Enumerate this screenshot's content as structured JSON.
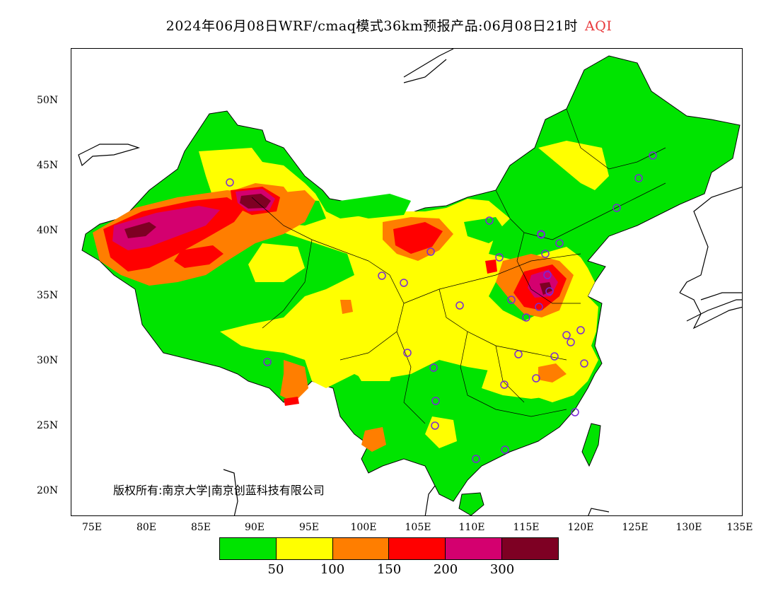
{
  "title": {
    "main": "2024年06月08日WRF/cmaq模式36km预报产品:06月08日21时",
    "product": "AQI"
  },
  "copyright": "版权所有:南京大学|南京创蓝科技有限公司",
  "axes": {
    "y_ticks": [
      "50N",
      "45N",
      "40N",
      "35N",
      "30N",
      "25N",
      "20N"
    ],
    "x_ticks": [
      "75E",
      "80E",
      "85E",
      "90E",
      "95E",
      "100E",
      "105E",
      "110E",
      "115E",
      "120E",
      "125E",
      "130E",
      "135E"
    ]
  },
  "legend": {
    "colors": [
      "#00e400",
      "#ffff00",
      "#ff7e00",
      "#ff0000",
      "#d4006f",
      "#7e0023"
    ],
    "labels": [
      "50",
      "100",
      "150",
      "200",
      "300"
    ]
  },
  "colors": {
    "green": "#00e400",
    "yellow": "#ffff00",
    "orange": "#ff7e00",
    "red": "#ff0000",
    "purple": "#d4006f",
    "maroon": "#7e0023",
    "station_marker": "#7a29d6"
  }
}
